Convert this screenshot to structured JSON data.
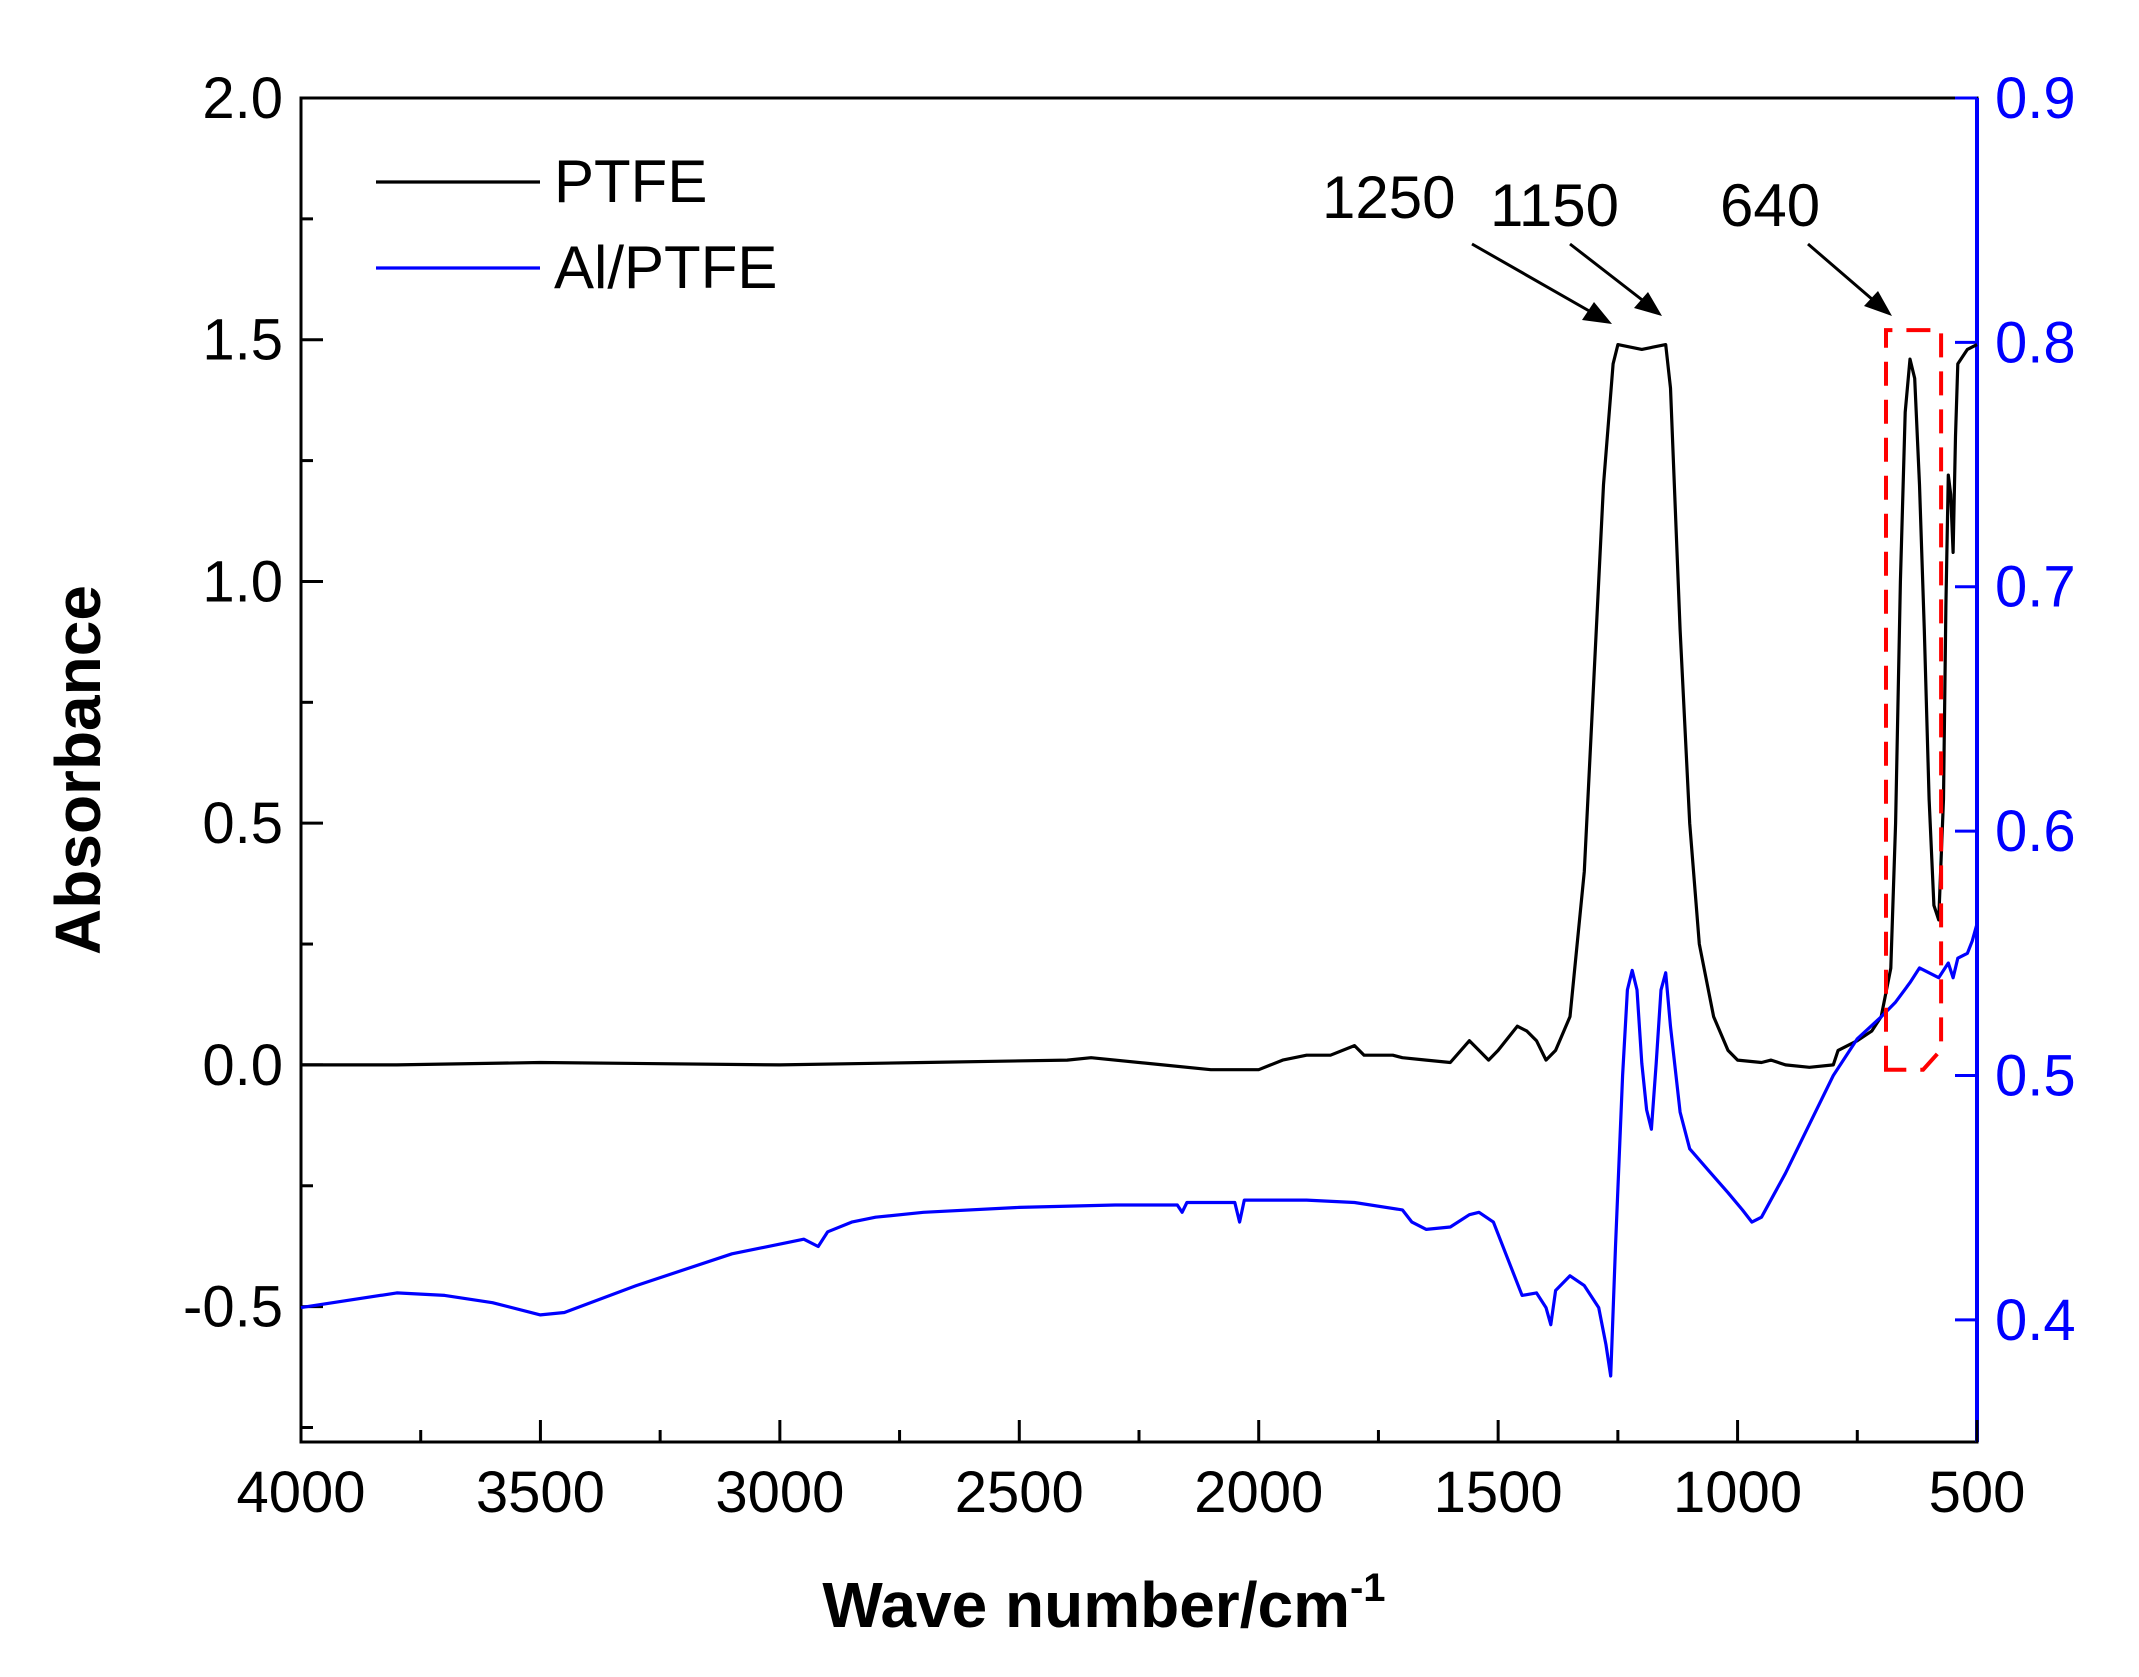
{
  "chart_data": {
    "type": "line",
    "xlabel": "Wave number/cm",
    "xlabel_sup": "-1",
    "ylabel": "Absorbance",
    "xlim": [
      4000,
      500
    ],
    "ylim_left": [
      -0.78,
      2.0
    ],
    "ylim_right": [
      0.35,
      0.9
    ],
    "x_ticks": [
      4000,
      3500,
      3000,
      2500,
      2000,
      1500,
      1000,
      500
    ],
    "x_tick_labels": [
      "4000",
      "3500",
      "3000",
      "2500",
      "2000",
      "1500",
      "1000",
      "500"
    ],
    "y_left_ticks": [
      2.0,
      1.5,
      1.0,
      0.5,
      0.0,
      -0.5
    ],
    "y_left_tick_labels": [
      "2.0",
      "1.5",
      "1.0",
      "0.5",
      "0.0",
      "-0.5"
    ],
    "y_right_ticks": [
      0.9,
      0.8,
      0.7,
      0.6,
      0.5,
      0.4
    ],
    "y_right_tick_labels": [
      "0.9",
      "0.8",
      "0.7",
      "0.6",
      "0.5",
      "0.4"
    ],
    "right_axis_color": "#0000ff",
    "legend_position": "top-left",
    "series": [
      {
        "name": "PTFE",
        "axis": "left",
        "color": "#000000",
        "points": [
          [
            4000,
            0.0
          ],
          [
            3800,
            0.0
          ],
          [
            3500,
            0.005
          ],
          [
            3000,
            0.0
          ],
          [
            2700,
            0.005
          ],
          [
            2400,
            0.01
          ],
          [
            2350,
            0.015
          ],
          [
            2200,
            0.0
          ],
          [
            2100,
            -0.01
          ],
          [
            2000,
            -0.01
          ],
          [
            1950,
            0.01
          ],
          [
            1900,
            0.02
          ],
          [
            1850,
            0.02
          ],
          [
            1800,
            0.04
          ],
          [
            1780,
            0.02
          ],
          [
            1720,
            0.02
          ],
          [
            1700,
            0.015
          ],
          [
            1650,
            0.01
          ],
          [
            1600,
            0.005
          ],
          [
            1560,
            0.05
          ],
          [
            1540,
            0.03
          ],
          [
            1520,
            0.01
          ],
          [
            1500,
            0.03
          ],
          [
            1460,
            0.08
          ],
          [
            1440,
            0.07
          ],
          [
            1420,
            0.05
          ],
          [
            1400,
            0.01
          ],
          [
            1380,
            0.03
          ],
          [
            1350,
            0.1
          ],
          [
            1320,
            0.4
          ],
          [
            1300,
            0.8
          ],
          [
            1280,
            1.2
          ],
          [
            1260,
            1.45
          ],
          [
            1250,
            1.49
          ],
          [
            1200,
            1.48
          ],
          [
            1150,
            1.49
          ],
          [
            1140,
            1.4
          ],
          [
            1120,
            0.9
          ],
          [
            1100,
            0.5
          ],
          [
            1080,
            0.25
          ],
          [
            1050,
            0.1
          ],
          [
            1020,
            0.03
          ],
          [
            1000,
            0.01
          ],
          [
            950,
            0.005
          ],
          [
            930,
            0.01
          ],
          [
            900,
            0.0
          ],
          [
            850,
            -0.005
          ],
          [
            800,
            0.0
          ],
          [
            790,
            0.03
          ],
          [
            750,
            0.05
          ],
          [
            720,
            0.07
          ],
          [
            700,
            0.1
          ],
          [
            680,
            0.2
          ],
          [
            670,
            0.5
          ],
          [
            660,
            1.0
          ],
          [
            650,
            1.35
          ],
          [
            640,
            1.46
          ],
          [
            630,
            1.42
          ],
          [
            620,
            1.2
          ],
          [
            610,
            0.9
          ],
          [
            600,
            0.55
          ],
          [
            590,
            0.33
          ],
          [
            580,
            0.3
          ],
          [
            570,
            0.55
          ],
          [
            565,
            0.95
          ],
          [
            560,
            1.22
          ],
          [
            555,
            1.18
          ],
          [
            550,
            1.06
          ],
          [
            545,
            1.3
          ],
          [
            540,
            1.45
          ],
          [
            520,
            1.48
          ],
          [
            500,
            1.49
          ]
        ]
      },
      {
        "name": "Al/PTFE",
        "axis": "right",
        "color": "#0000ff",
        "points": [
          [
            4000,
            0.405
          ],
          [
            3800,
            0.411
          ],
          [
            3700,
            0.41
          ],
          [
            3600,
            0.407
          ],
          [
            3500,
            0.402
          ],
          [
            3450,
            0.403
          ],
          [
            3300,
            0.414
          ],
          [
            3100,
            0.427
          ],
          [
            2950,
            0.433
          ],
          [
            2920,
            0.43
          ],
          [
            2900,
            0.436
          ],
          [
            2850,
            0.44
          ],
          [
            2800,
            0.442
          ],
          [
            2700,
            0.444
          ],
          [
            2500,
            0.446
          ],
          [
            2300,
            0.447
          ],
          [
            2170,
            0.447
          ],
          [
            2160,
            0.444
          ],
          [
            2150,
            0.448
          ],
          [
            2050,
            0.448
          ],
          [
            2040,
            0.44
          ],
          [
            2030,
            0.449
          ],
          [
            1900,
            0.449
          ],
          [
            1800,
            0.448
          ],
          [
            1700,
            0.445
          ],
          [
            1680,
            0.44
          ],
          [
            1650,
            0.437
          ],
          [
            1600,
            0.438
          ],
          [
            1560,
            0.443
          ],
          [
            1540,
            0.444
          ],
          [
            1510,
            0.44
          ],
          [
            1480,
            0.425
          ],
          [
            1450,
            0.41
          ],
          [
            1420,
            0.411
          ],
          [
            1400,
            0.405
          ],
          [
            1390,
            0.398
          ],
          [
            1380,
            0.412
          ],
          [
            1350,
            0.418
          ],
          [
            1320,
            0.414
          ],
          [
            1290,
            0.405
          ],
          [
            1275,
            0.39
          ],
          [
            1265,
            0.377
          ],
          [
            1255,
            0.43
          ],
          [
            1240,
            0.5
          ],
          [
            1230,
            0.535
          ],
          [
            1220,
            0.543
          ],
          [
            1210,
            0.535
          ],
          [
            1200,
            0.505
          ],
          [
            1190,
            0.486
          ],
          [
            1180,
            0.478
          ],
          [
            1170,
            0.505
          ],
          [
            1160,
            0.535
          ],
          [
            1150,
            0.542
          ],
          [
            1140,
            0.52
          ],
          [
            1120,
            0.485
          ],
          [
            1100,
            0.47
          ],
          [
            1060,
            0.461
          ],
          [
            1020,
            0.452
          ],
          [
            990,
            0.445
          ],
          [
            970,
            0.44
          ],
          [
            950,
            0.442
          ],
          [
            900,
            0.46
          ],
          [
            850,
            0.48
          ],
          [
            800,
            0.5
          ],
          [
            750,
            0.515
          ],
          [
            700,
            0.524
          ],
          [
            670,
            0.53
          ],
          [
            640,
            0.538
          ],
          [
            620,
            0.544
          ],
          [
            600,
            0.542
          ],
          [
            580,
            0.54
          ],
          [
            570,
            0.543
          ],
          [
            560,
            0.546
          ],
          [
            550,
            0.54
          ],
          [
            540,
            0.548
          ],
          [
            520,
            0.55
          ],
          [
            510,
            0.555
          ],
          [
            500,
            0.562
          ]
        ]
      }
    ],
    "annotations": [
      {
        "text": "1250",
        "target_x": 1250,
        "target_y": 1.49
      },
      {
        "text": "1150",
        "target_x": 1160,
        "target_y": 1.49
      },
      {
        "text": "640",
        "target_x": 640,
        "target_y": 1.5
      }
    ],
    "highlight_box": {
      "x_range": [
        690,
        575
      ],
      "y_range": [
        -0.01,
        1.52
      ],
      "color": "#ff0000",
      "style": "dashed"
    }
  }
}
